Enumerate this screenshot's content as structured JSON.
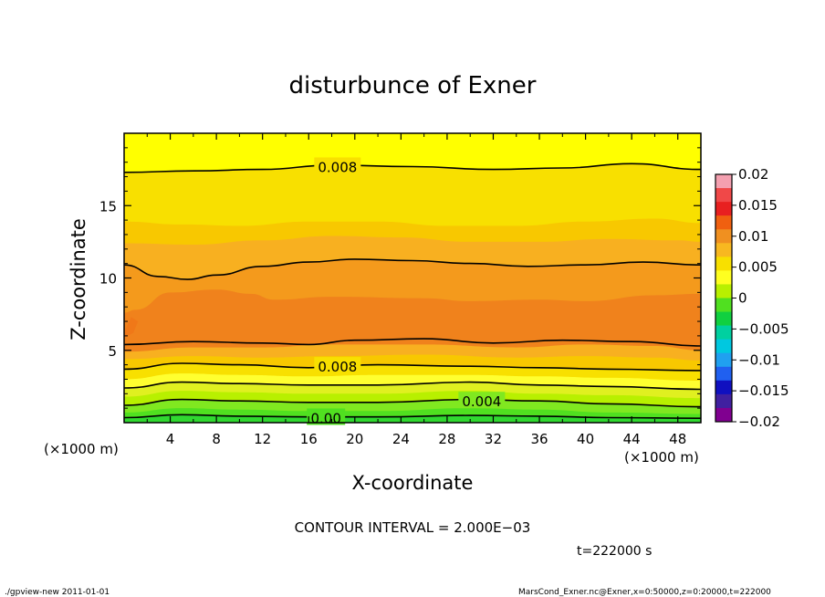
{
  "chart_data": {
    "type": "heatmap",
    "title": "disturbunce of Exner",
    "xlabel": "X-coordinate",
    "ylabel": "Z-coordinate",
    "x_unit_label_left": "(×1000 m)",
    "x_unit_label_right": "(×1000 m)",
    "xlim": [
      0,
      50
    ],
    "ylim": [
      0,
      20
    ],
    "x_ticks": [
      4,
      8,
      12,
      16,
      20,
      24,
      28,
      32,
      36,
      40,
      44,
      48
    ],
    "y_ticks": [
      5,
      10,
      15
    ],
    "colorbar": {
      "range": [
        -0.02,
        0.02
      ],
      "tick_values": [
        0.02,
        0.015,
        0.01,
        0.005,
        0,
        -0.005,
        -0.01,
        -0.015,
        -0.02
      ],
      "tick_labels": [
        "0.02",
        "0.015",
        "0.01",
        "0.005",
        "0",
        "−0.005",
        "−0.01",
        "−0.015",
        "−0.02"
      ],
      "colors": [
        "#f4a0b0",
        "#f04848",
        "#e82020",
        "#f06010",
        "#f09020",
        "#f8b820",
        "#f8e000",
        "#ffff20",
        "#b8f000",
        "#50e020",
        "#10d040",
        "#00d0a0",
        "#00c8e0",
        "#20a0f0",
        "#2060f0",
        "#1010c0",
        "#4020a0",
        "#800090"
      ]
    },
    "contour_interval": "CONTOUR INTERVAL = 2.000E−03",
    "contour_labels": [
      "0.008",
      "0.008",
      "0.004",
      "0.00"
    ],
    "fill_layers": [
      {
        "value": 0.0085,
        "color": "#f8e000",
        "boundary": [
          [
            0,
            17.3
          ],
          [
            6,
            17.4
          ],
          [
            12,
            17.5
          ],
          [
            18,
            17.8
          ],
          [
            25,
            17.7
          ],
          [
            32,
            17.5
          ],
          [
            38,
            17.6
          ],
          [
            44,
            17.9
          ],
          [
            50,
            17.5
          ]
        ]
      },
      {
        "value": 0.009,
        "color": "#f8c800",
        "boundary": [
          [
            0,
            13.9
          ],
          [
            5,
            13.7
          ],
          [
            10,
            13.6
          ],
          [
            16,
            13.9
          ],
          [
            22,
            13.9
          ],
          [
            28,
            13.6
          ],
          [
            34,
            13.6
          ],
          [
            40,
            13.9
          ],
          [
            46,
            14.1
          ],
          [
            50,
            13.8
          ]
        ]
      },
      {
        "value": 0.0095,
        "color": "#f8b020",
        "boundary": [
          [
            0,
            12.4
          ],
          [
            6,
            12.3
          ],
          [
            12,
            12.6
          ],
          [
            18,
            12.9
          ],
          [
            24,
            12.8
          ],
          [
            30,
            12.5
          ],
          [
            36,
            12.5
          ],
          [
            42,
            12.7
          ],
          [
            48,
            12.6
          ],
          [
            50,
            12.5
          ]
        ]
      },
      {
        "value": 0.01,
        "color": "#f49a1c",
        "boundary": [
          [
            0,
            10.9
          ],
          [
            3,
            10.1
          ],
          [
            5.5,
            9.9
          ],
          [
            8,
            10.2
          ],
          [
            12,
            10.8
          ],
          [
            16,
            11.1
          ],
          [
            20,
            11.3
          ],
          [
            25,
            11.2
          ],
          [
            30,
            11.0
          ],
          [
            35,
            10.8
          ],
          [
            40,
            10.9
          ],
          [
            45,
            11.1
          ],
          [
            50,
            10.9
          ]
        ]
      },
      {
        "value": 0.0105,
        "color": "#f0821c",
        "boundary": [
          [
            0,
            7.6
          ],
          [
            1,
            7.8
          ],
          [
            4,
            9.0
          ],
          [
            8,
            9.2
          ],
          [
            11,
            8.9
          ],
          [
            13,
            8.5
          ],
          [
            18,
            8.7
          ],
          [
            26,
            8.6
          ],
          [
            30,
            8.4
          ],
          [
            36,
            8.5
          ],
          [
            40,
            8.4
          ],
          [
            46,
            8.8
          ],
          [
            50,
            8.9
          ]
        ]
      }
    ],
    "bottom_layers": [
      {
        "value": 0.0095,
        "color": "#f8b020",
        "boundary": [
          [
            0,
            4.9
          ],
          [
            6,
            5.2
          ],
          [
            12,
            5.2
          ],
          [
            18,
            5.4
          ],
          [
            26,
            5.4
          ],
          [
            34,
            5.2
          ],
          [
            40,
            5.4
          ],
          [
            46,
            5.3
          ],
          [
            50,
            5.0
          ]
        ]
      },
      {
        "value": 0.009,
        "color": "#f8c800",
        "boundary": [
          [
            0,
            4.4
          ],
          [
            6,
            4.6
          ],
          [
            12,
            4.5
          ],
          [
            18,
            4.6
          ],
          [
            26,
            4.7
          ],
          [
            34,
            4.5
          ],
          [
            40,
            4.6
          ],
          [
            46,
            4.5
          ],
          [
            50,
            4.3
          ]
        ]
      },
      {
        "value": 0.008,
        "color": "#f8e000",
        "boundary": [
          [
            0,
            3.7
          ],
          [
            5,
            4.1
          ],
          [
            10,
            4.0
          ],
          [
            16,
            3.8
          ],
          [
            22,
            4.0
          ],
          [
            30,
            3.9
          ],
          [
            36,
            3.8
          ],
          [
            42,
            3.7
          ],
          [
            50,
            3.6
          ]
        ]
      },
      {
        "value": 0.007,
        "color": "#ffff30",
        "boundary": [
          [
            0,
            3.0
          ],
          [
            5,
            3.4
          ],
          [
            10,
            3.3
          ],
          [
            16,
            3.2
          ],
          [
            22,
            3.3
          ],
          [
            30,
            3.3
          ],
          [
            36,
            3.2
          ],
          [
            42,
            3.1
          ],
          [
            50,
            2.9
          ]
        ]
      },
      {
        "value": 0.006,
        "color": "#e0f020",
        "boundary": [
          [
            0,
            2.4
          ],
          [
            5,
            2.8
          ],
          [
            10,
            2.7
          ],
          [
            16,
            2.6
          ],
          [
            22,
            2.6
          ],
          [
            30,
            2.8
          ],
          [
            36,
            2.6
          ],
          [
            42,
            2.5
          ],
          [
            50,
            2.3
          ]
        ]
      },
      {
        "value": 0.005,
        "color": "#b8f000",
        "boundary": [
          [
            0,
            1.8
          ],
          [
            5,
            2.2
          ],
          [
            10,
            2.1
          ],
          [
            16,
            2.0
          ],
          [
            22,
            2.0
          ],
          [
            30,
            2.2
          ],
          [
            36,
            2.0
          ],
          [
            42,
            1.9
          ],
          [
            50,
            1.7
          ]
        ]
      },
      {
        "value": 0.004,
        "color": "#80e820",
        "boundary": [
          [
            0,
            1.2
          ],
          [
            5,
            1.6
          ],
          [
            10,
            1.5
          ],
          [
            16,
            1.4
          ],
          [
            22,
            1.4
          ],
          [
            30,
            1.6
          ],
          [
            36,
            1.5
          ],
          [
            42,
            1.3
          ],
          [
            50,
            1.1
          ]
        ]
      },
      {
        "value": 0.003,
        "color": "#50e020",
        "boundary": [
          [
            0,
            0.7
          ],
          [
            5,
            1.0
          ],
          [
            10,
            0.9
          ],
          [
            16,
            0.8
          ],
          [
            22,
            0.8
          ],
          [
            30,
            1.0
          ],
          [
            36,
            0.9
          ],
          [
            42,
            0.7
          ],
          [
            50,
            0.6
          ]
        ]
      },
      {
        "value": 0.002,
        "color": "#30d830",
        "boundary": [
          [
            0,
            0.35
          ],
          [
            5,
            0.55
          ],
          [
            10,
            0.45
          ],
          [
            16,
            0.4
          ],
          [
            22,
            0.4
          ],
          [
            30,
            0.5
          ],
          [
            36,
            0.45
          ],
          [
            42,
            0.35
          ],
          [
            50,
            0.3
          ]
        ]
      }
    ],
    "core_patch": {
      "value": 0.011,
      "color": "#f07818",
      "outline": [
        [
          0,
          6.2
        ],
        [
          0.6,
          7.3
        ],
        [
          1.2,
          7.0
        ],
        [
          0.8,
          6.2
        ],
        [
          0,
          5.9
        ]
      ]
    },
    "contour_lines": [
      {
        "value": 0.008,
        "points": [
          [
            0,
            17.3
          ],
          [
            6,
            17.4
          ],
          [
            12,
            17.5
          ],
          [
            18,
            17.8
          ],
          [
            25,
            17.7
          ],
          [
            32,
            17.5
          ],
          [
            38,
            17.6
          ],
          [
            44,
            17.9
          ],
          [
            50,
            17.5
          ]
        ]
      },
      {
        "value": 0.01,
        "points": [
          [
            0,
            10.9
          ],
          [
            3,
            10.1
          ],
          [
            5.5,
            9.9
          ],
          [
            8,
            10.2
          ],
          [
            12,
            10.8
          ],
          [
            16,
            11.1
          ],
          [
            20,
            11.3
          ],
          [
            25,
            11.2
          ],
          [
            30,
            11.0
          ],
          [
            35,
            10.8
          ],
          [
            40,
            10.9
          ],
          [
            45,
            11.1
          ],
          [
            50,
            10.9
          ]
        ]
      },
      {
        "value": 0.01,
        "points": [
          [
            0,
            5.4
          ],
          [
            6,
            5.6
          ],
          [
            12,
            5.5
          ],
          [
            16,
            5.4
          ],
          [
            20,
            5.7
          ],
          [
            26,
            5.8
          ],
          [
            32,
            5.5
          ],
          [
            38,
            5.7
          ],
          [
            44,
            5.6
          ],
          [
            50,
            5.3
          ]
        ]
      },
      {
        "value": 0.008,
        "points": [
          [
            0,
            3.7
          ],
          [
            5,
            4.1
          ],
          [
            10,
            4.0
          ],
          [
            16,
            3.8
          ],
          [
            22,
            4.0
          ],
          [
            30,
            3.9
          ],
          [
            36,
            3.8
          ],
          [
            42,
            3.7
          ],
          [
            50,
            3.6
          ]
        ]
      },
      {
        "value": 0.006,
        "points": [
          [
            0,
            2.4
          ],
          [
            5,
            2.8
          ],
          [
            10,
            2.7
          ],
          [
            16,
            2.6
          ],
          [
            22,
            2.6
          ],
          [
            30,
            2.8
          ],
          [
            36,
            2.6
          ],
          [
            42,
            2.5
          ],
          [
            50,
            2.3
          ]
        ]
      },
      {
        "value": 0.004,
        "points": [
          [
            0,
            1.2
          ],
          [
            5,
            1.6
          ],
          [
            10,
            1.5
          ],
          [
            16,
            1.4
          ],
          [
            22,
            1.4
          ],
          [
            30,
            1.6
          ],
          [
            36,
            1.5
          ],
          [
            42,
            1.3
          ],
          [
            50,
            1.1
          ]
        ]
      },
      {
        "value": 0.002,
        "points": [
          [
            0,
            0.35
          ],
          [
            5,
            0.55
          ],
          [
            10,
            0.45
          ],
          [
            16,
            0.4
          ],
          [
            22,
            0.4
          ],
          [
            30,
            0.5
          ],
          [
            36,
            0.45
          ],
          [
            42,
            0.35
          ],
          [
            50,
            0.3
          ]
        ]
      }
    ],
    "contour_label_positions": [
      [
        18.5,
        17.7
      ],
      [
        18.5,
        3.9
      ],
      [
        31,
        1.5
      ],
      [
        17.5,
        0.35
      ]
    ]
  },
  "time_label": "t=222000 s",
  "footer_left": "./gpview-new   2011-01-01",
  "footer_right": "MarsCond_Exner.nc@Exner,x=0:50000,z=0:20000,t=222000"
}
